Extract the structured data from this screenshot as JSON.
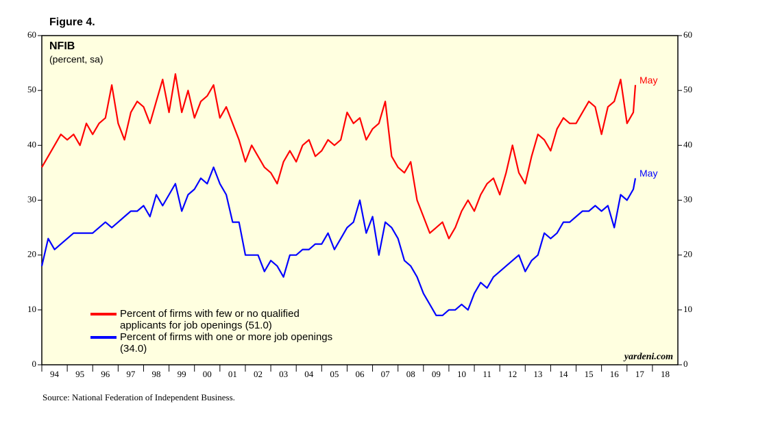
{
  "chart_data": {
    "type": "line",
    "figure_label": "Figure 4.",
    "title": "NFIB",
    "subtitle": "(percent, sa)",
    "watermark": "yardeni.com",
    "source": "Source: National Federation of Independent Business.",
    "x": [
      1994,
      1994.25,
      1994.5,
      1994.75,
      1995,
      1995.25,
      1995.5,
      1995.75,
      1996,
      1996.25,
      1996.5,
      1996.75,
      1997,
      1997.25,
      1997.5,
      1997.75,
      1998,
      1998.25,
      1998.5,
      1998.75,
      1999,
      1999.25,
      1999.5,
      1999.75,
      2000,
      2000.25,
      2000.5,
      2000.75,
      2001,
      2001.25,
      2001.5,
      2001.75,
      2002,
      2002.25,
      2002.5,
      2002.75,
      2003,
      2003.25,
      2003.5,
      2003.75,
      2004,
      2004.25,
      2004.5,
      2004.75,
      2005,
      2005.25,
      2005.5,
      2005.75,
      2006,
      2006.25,
      2006.5,
      2006.75,
      2007,
      2007.25,
      2007.5,
      2007.75,
      2008,
      2008.25,
      2008.5,
      2008.75,
      2009,
      2009.25,
      2009.5,
      2009.75,
      2010,
      2010.25,
      2010.5,
      2010.75,
      2011,
      2011.25,
      2011.5,
      2011.75,
      2012,
      2012.25,
      2012.5,
      2012.75,
      2013,
      2013.25,
      2013.5,
      2013.75,
      2014,
      2014.25,
      2014.5,
      2014.75,
      2015,
      2015.25,
      2015.5,
      2015.75,
      2016,
      2016.25,
      2016.5,
      2016.75,
      2017,
      2017.25,
      2017.33
    ],
    "series": [
      {
        "name": "Percent of firms with few or no qualified applicants for job openings (51.0)",
        "color": "#ff0000",
        "end_label": "May",
        "values": [
          36,
          38,
          40,
          42,
          41,
          42,
          40,
          44,
          42,
          44,
          45,
          51,
          44,
          41,
          46,
          48,
          47,
          44,
          48,
          52,
          46,
          53,
          46,
          50,
          45,
          48,
          49,
          51,
          45,
          47,
          44,
          41,
          37,
          40,
          38,
          36,
          35,
          33,
          37,
          39,
          37,
          40,
          41,
          38,
          39,
          41,
          40,
          41,
          46,
          44,
          45,
          41,
          43,
          44,
          48,
          38,
          36,
          35,
          37,
          30,
          27,
          24,
          25,
          26,
          23,
          25,
          28,
          30,
          28,
          31,
          33,
          34,
          31,
          35,
          40,
          35,
          33,
          38,
          42,
          41,
          39,
          43,
          45,
          44,
          44,
          46,
          48,
          47,
          42,
          47,
          48,
          52,
          44,
          46,
          51
        ]
      },
      {
        "name": "Percent of firms with one or more job openings (34.0)",
        "color": "#0000ff",
        "end_label": "May",
        "values": [
          18,
          23,
          21,
          22,
          23,
          24,
          24,
          24,
          24,
          25,
          26,
          25,
          26,
          27,
          28,
          28,
          29,
          27,
          31,
          29,
          31,
          33,
          28,
          31,
          32,
          34,
          33,
          36,
          33,
          31,
          26,
          26,
          20,
          20,
          20,
          17,
          19,
          18,
          16,
          20,
          20,
          21,
          21,
          22,
          22,
          24,
          21,
          23,
          25,
          26,
          30,
          24,
          27,
          20,
          26,
          25,
          23,
          19,
          18,
          16,
          13,
          11,
          9,
          9,
          10,
          10,
          11,
          10,
          13,
          15,
          14,
          16,
          17,
          18,
          19,
          20,
          17,
          19,
          20,
          24,
          23,
          24,
          26,
          26,
          27,
          28,
          28,
          29,
          28,
          29,
          25,
          31,
          30,
          32,
          34
        ]
      }
    ],
    "xlim": [
      1994,
      2019
    ],
    "xticks": [
      {
        "value": 1994,
        "label": "94"
      },
      {
        "value": 1995,
        "label": "95"
      },
      {
        "value": 1996,
        "label": "96"
      },
      {
        "value": 1997,
        "label": "97"
      },
      {
        "value": 1998,
        "label": "98"
      },
      {
        "value": 1999,
        "label": "99"
      },
      {
        "value": 2000,
        "label": "00"
      },
      {
        "value": 2001,
        "label": "01"
      },
      {
        "value": 2002,
        "label": "02"
      },
      {
        "value": 2003,
        "label": "03"
      },
      {
        "value": 2004,
        "label": "04"
      },
      {
        "value": 2005,
        "label": "05"
      },
      {
        "value": 2006,
        "label": "06"
      },
      {
        "value": 2007,
        "label": "07"
      },
      {
        "value": 2008,
        "label": "08"
      },
      {
        "value": 2009,
        "label": "09"
      },
      {
        "value": 2010,
        "label": "10"
      },
      {
        "value": 2011,
        "label": "11"
      },
      {
        "value": 2012,
        "label": "12"
      },
      {
        "value": 2013,
        "label": "13"
      },
      {
        "value": 2014,
        "label": "14"
      },
      {
        "value": 2015,
        "label": "15"
      },
      {
        "value": 2016,
        "label": "16"
      },
      {
        "value": 2017,
        "label": "17"
      },
      {
        "value": 2018,
        "label": "18"
      }
    ],
    "ylim": [
      0,
      60
    ],
    "yticks": [
      0,
      10,
      20,
      30,
      40,
      50,
      60
    ],
    "legend": "lower left"
  }
}
